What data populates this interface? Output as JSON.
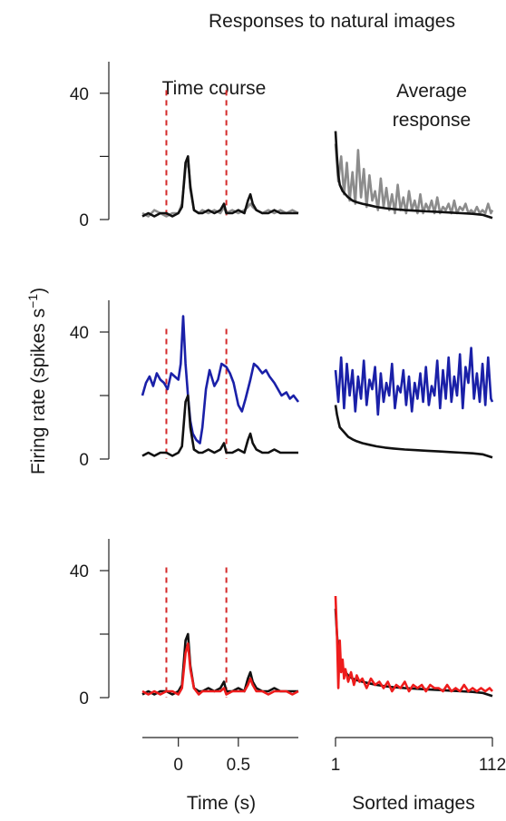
{
  "title": "Responses to natural images",
  "ylabel": "Firing rate (spikes s",
  "ylabel_sup": "−1",
  "ylabel_close": ")",
  "colors": {
    "black": "#111111",
    "gray": "#8c8c8c",
    "blue": "#1a20a8",
    "red": "#ee1c1c",
    "stimulus": "#d42a2a",
    "axis": "#222222"
  },
  "chart_data": [
    {
      "type": "line",
      "panel": "time-course",
      "row": 1,
      "title": "Time course",
      "xlabel": "",
      "xlim": [
        -0.3,
        1.0
      ],
      "ylim": [
        0,
        50
      ],
      "yticks": [
        0,
        20,
        40
      ],
      "ytick_labels": [
        "0",
        "",
        "40"
      ],
      "stimulus_lines": [
        -0.1,
        0.4
      ],
      "series": [
        {
          "color": "gray",
          "x": [
            -0.3,
            -0.25,
            -0.2,
            -0.15,
            -0.1,
            -0.05,
            0,
            0.03,
            0.06,
            0.08,
            0.1,
            0.13,
            0.17,
            0.2,
            0.25,
            0.3,
            0.35,
            0.38,
            0.4,
            0.45,
            0.5,
            0.55,
            0.58,
            0.6,
            0.62,
            0.65,
            0.7,
            0.75,
            0.8,
            0.85,
            0.9,
            0.95,
            1.0
          ],
          "y": [
            2,
            1,
            3,
            2,
            1,
            2,
            2,
            5,
            16,
            19,
            11,
            3,
            2,
            3,
            2,
            3,
            2,
            4,
            2,
            3,
            2,
            3,
            4,
            5,
            4,
            3,
            2,
            3,
            2,
            3,
            2,
            3,
            2
          ]
        },
        {
          "color": "black",
          "x": [
            -0.3,
            -0.25,
            -0.2,
            -0.15,
            -0.1,
            -0.05,
            0,
            0.03,
            0.06,
            0.08,
            0.1,
            0.13,
            0.17,
            0.2,
            0.25,
            0.3,
            0.35,
            0.38,
            0.4,
            0.45,
            0.5,
            0.55,
            0.58,
            0.6,
            0.62,
            0.65,
            0.7,
            0.75,
            0.8,
            0.85,
            0.9,
            0.95,
            1.0
          ],
          "y": [
            1,
            2,
            1,
            2,
            2,
            1,
            2,
            4,
            18,
            20,
            10,
            3,
            2,
            2,
            3,
            2,
            3,
            5,
            2,
            2,
            3,
            2,
            6,
            8,
            5,
            3,
            2,
            2,
            3,
            2,
            2,
            2,
            2
          ]
        }
      ]
    },
    {
      "type": "line",
      "panel": "average-response",
      "row": 1,
      "title": "Average response",
      "xlabel": "",
      "xlim": [
        1,
        112
      ],
      "ylim": [
        0,
        50
      ],
      "series": [
        {
          "color": "gray",
          "x": [
            1,
            3,
            5,
            7,
            9,
            11,
            13,
            15,
            17,
            19,
            21,
            23,
            25,
            27,
            29,
            31,
            33,
            35,
            37,
            39,
            41,
            43,
            45,
            47,
            49,
            51,
            53,
            55,
            57,
            59,
            61,
            63,
            65,
            67,
            69,
            71,
            73,
            75,
            77,
            79,
            81,
            83,
            85,
            87,
            89,
            91,
            93,
            95,
            97,
            99,
            101,
            103,
            105,
            107,
            109,
            111,
            112
          ],
          "y": [
            24,
            12,
            20,
            8,
            18,
            6,
            15,
            5,
            22,
            7,
            16,
            4,
            14,
            6,
            9,
            3,
            13,
            4,
            10,
            3,
            8,
            2,
            11,
            3,
            7,
            2,
            9,
            3,
            6,
            2,
            8,
            2,
            5,
            3,
            6,
            2,
            7,
            2,
            4,
            3,
            5,
            2,
            6,
            2,
            4,
            3,
            5,
            2,
            3,
            2,
            4,
            2,
            3,
            2,
            5,
            2,
            3
          ]
        },
        {
          "color": "black",
          "x": [
            1,
            2,
            3,
            4,
            6,
            8,
            10,
            13,
            16,
            20,
            25,
            30,
            36,
            42,
            50,
            58,
            66,
            74,
            82,
            90,
            98,
            105,
            112
          ],
          "y": [
            28,
            20,
            14,
            11,
            9,
            8,
            7,
            6,
            5.5,
            5,
            4.5,
            4,
            3.6,
            3.3,
            3,
            2.8,
            2.6,
            2.4,
            2.2,
            2,
            1.8,
            1.5,
            0.5
          ]
        }
      ]
    },
    {
      "type": "line",
      "panel": "time-course",
      "row": 2,
      "title": "",
      "xlabel": "",
      "xlim": [
        -0.3,
        1.0
      ],
      "ylim": [
        0,
        50
      ],
      "yticks": [
        0,
        20,
        40
      ],
      "ytick_labels": [
        "0",
        "",
        "40"
      ],
      "stimulus_lines": [
        -0.1,
        0.4
      ],
      "series": [
        {
          "color": "blue",
          "x": [
            -0.3,
            -0.27,
            -0.24,
            -0.21,
            -0.18,
            -0.15,
            -0.12,
            -0.09,
            -0.06,
            -0.03,
            0,
            0.02,
            0.04,
            0.06,
            0.08,
            0.1,
            0.12,
            0.15,
            0.18,
            0.2,
            0.23,
            0.26,
            0.3,
            0.33,
            0.36,
            0.4,
            0.43,
            0.46,
            0.5,
            0.53,
            0.56,
            0.6,
            0.63,
            0.66,
            0.7,
            0.73,
            0.76,
            0.8,
            0.83,
            0.86,
            0.9,
            0.93,
            0.96,
            1.0
          ],
          "y": [
            20,
            24,
            26,
            23,
            27,
            25,
            24,
            22,
            27,
            26,
            25,
            30,
            45,
            30,
            20,
            12,
            8,
            6,
            5,
            10,
            22,
            28,
            23,
            25,
            30,
            29,
            27,
            24,
            17,
            15,
            19,
            25,
            30,
            29,
            27,
            28,
            26,
            24,
            22,
            20,
            21,
            19,
            20,
            18
          ]
        },
        {
          "color": "black",
          "x": [
            -0.3,
            -0.25,
            -0.2,
            -0.15,
            -0.1,
            -0.05,
            0,
            0.03,
            0.06,
            0.08,
            0.1,
            0.13,
            0.17,
            0.2,
            0.25,
            0.3,
            0.35,
            0.38,
            0.4,
            0.45,
            0.5,
            0.55,
            0.58,
            0.6,
            0.62,
            0.65,
            0.7,
            0.75,
            0.8,
            0.85,
            0.9,
            0.95,
            1.0
          ],
          "y": [
            1,
            2,
            1,
            2,
            2,
            1,
            2,
            4,
            18,
            20,
            10,
            3,
            2,
            2,
            3,
            2,
            3,
            5,
            2,
            2,
            3,
            2,
            6,
            8,
            5,
            3,
            2,
            2,
            3,
            2,
            2,
            2,
            2
          ]
        }
      ]
    },
    {
      "type": "line",
      "panel": "average-response",
      "row": 2,
      "title": "",
      "xlabel": "",
      "xlim": [
        1,
        112
      ],
      "ylim": [
        0,
        50
      ],
      "series": [
        {
          "color": "blue",
          "x": [
            1,
            3,
            5,
            7,
            9,
            11,
            13,
            15,
            17,
            19,
            21,
            23,
            25,
            27,
            29,
            31,
            33,
            35,
            37,
            39,
            41,
            43,
            45,
            47,
            49,
            51,
            53,
            55,
            57,
            59,
            61,
            63,
            65,
            67,
            69,
            71,
            73,
            75,
            77,
            79,
            81,
            83,
            85,
            87,
            89,
            91,
            93,
            95,
            97,
            99,
            101,
            103,
            105,
            107,
            109,
            111,
            112
          ],
          "y": [
            28,
            18,
            32,
            16,
            30,
            20,
            28,
            15,
            26,
            19,
            31,
            17,
            25,
            22,
            29,
            14,
            27,
            18,
            24,
            20,
            30,
            16,
            23,
            21,
            28,
            17,
            26,
            15,
            24,
            19,
            27,
            18,
            29,
            17,
            23,
            20,
            31,
            16,
            28,
            19,
            32,
            18,
            26,
            20,
            33,
            16,
            29,
            24,
            35,
            19,
            27,
            18,
            30,
            17,
            32,
            19,
            18
          ]
        },
        {
          "color": "black",
          "x": [
            1,
            2,
            3,
            4,
            6,
            8,
            10,
            13,
            16,
            20,
            25,
            30,
            36,
            42,
            50,
            58,
            66,
            74,
            82,
            90,
            98,
            105,
            112
          ],
          "y": [
            17,
            14,
            12,
            10,
            9,
            8,
            7,
            6.2,
            5.6,
            5,
            4.5,
            4,
            3.6,
            3.3,
            3,
            2.8,
            2.6,
            2.4,
            2.2,
            2,
            1.8,
            1.5,
            0.5
          ]
        }
      ]
    },
    {
      "type": "line",
      "panel": "time-course",
      "row": 3,
      "title": "",
      "xlabel": "Time (s)",
      "xlim": [
        -0.3,
        1.0
      ],
      "xticks": [
        0,
        0.5
      ],
      "xtick_labels": [
        "0",
        "0.5"
      ],
      "ylim": [
        0,
        50
      ],
      "yticks": [
        0,
        20,
        40
      ],
      "ytick_labels": [
        "0",
        "",
        "40"
      ],
      "stimulus_lines": [
        -0.1,
        0.4
      ],
      "series": [
        {
          "color": "black",
          "x": [
            -0.3,
            -0.25,
            -0.2,
            -0.15,
            -0.1,
            -0.05,
            0,
            0.03,
            0.06,
            0.08,
            0.1,
            0.13,
            0.17,
            0.2,
            0.25,
            0.3,
            0.35,
            0.38,
            0.4,
            0.45,
            0.5,
            0.55,
            0.58,
            0.6,
            0.62,
            0.65,
            0.7,
            0.75,
            0.8,
            0.85,
            0.9,
            0.95,
            1.0
          ],
          "y": [
            1,
            2,
            1,
            2,
            2,
            1,
            2,
            4,
            18,
            20,
            10,
            3,
            2,
            2,
            3,
            2,
            3,
            5,
            2,
            2,
            3,
            2,
            6,
            8,
            5,
            3,
            2,
            2,
            3,
            2,
            2,
            2,
            2
          ]
        },
        {
          "color": "red",
          "x": [
            -0.3,
            -0.25,
            -0.2,
            -0.15,
            -0.1,
            -0.05,
            0,
            0.03,
            0.06,
            0.08,
            0.1,
            0.13,
            0.17,
            0.2,
            0.25,
            0.3,
            0.35,
            0.38,
            0.4,
            0.45,
            0.5,
            0.55,
            0.58,
            0.6,
            0.62,
            0.65,
            0.7,
            0.75,
            0.8,
            0.85,
            0.9,
            0.95,
            1.0
          ],
          "y": [
            2,
            1,
            2,
            1,
            2,
            2,
            1,
            3,
            14,
            17,
            9,
            3,
            1,
            2,
            2,
            2,
            2,
            3,
            1,
            2,
            2,
            2,
            4,
            6,
            4,
            2,
            2,
            1,
            2,
            2,
            2,
            1,
            2
          ]
        }
      ]
    },
    {
      "type": "line",
      "panel": "average-response",
      "row": 3,
      "title": "",
      "xlabel": "Sorted images",
      "xlim": [
        1,
        112
      ],
      "xticks": [
        1,
        112
      ],
      "xtick_labels": [
        "1",
        "112"
      ],
      "ylim": [
        0,
        50
      ],
      "series": [
        {
          "color": "black",
          "x": [
            1,
            2,
            3,
            4,
            6,
            8,
            10,
            13,
            16,
            20,
            25,
            30,
            36,
            42,
            50,
            58,
            66,
            74,
            82,
            90,
            98,
            105,
            112
          ],
          "y": [
            28,
            20,
            14,
            11,
            9,
            8,
            7,
            6,
            5.5,
            5,
            4.5,
            4,
            3.6,
            3.3,
            3,
            2.8,
            2.6,
            2.4,
            2.2,
            2,
            1.8,
            1.5,
            0.5
          ]
        },
        {
          "color": "red",
          "x": [
            1,
            2,
            3,
            4,
            5,
            6,
            7,
            8,
            10,
            12,
            14,
            16,
            18,
            20,
            23,
            26,
            29,
            32,
            35,
            38,
            41,
            44,
            47,
            50,
            53,
            56,
            59,
            62,
            65,
            68,
            71,
            74,
            77,
            80,
            83,
            86,
            89,
            92,
            95,
            98,
            101,
            104,
            107,
            110,
            112
          ],
          "y": [
            32,
            20,
            3,
            18,
            8,
            12,
            6,
            9,
            5,
            8,
            4,
            7,
            5,
            6,
            3,
            6,
            4,
            5,
            3,
            5,
            2,
            4,
            3,
            5,
            2,
            4,
            3,
            4,
            2,
            4,
            3,
            3,
            2,
            4,
            2,
            3,
            2,
            4,
            2,
            3,
            2,
            3,
            2,
            3,
            2
          ]
        }
      ]
    }
  ]
}
